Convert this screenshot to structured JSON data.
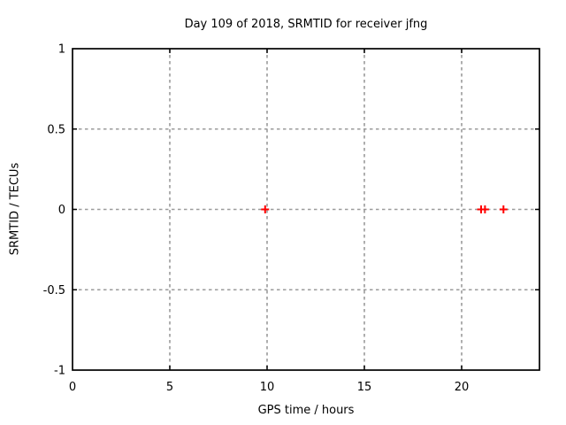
{
  "chart_data": {
    "type": "scatter",
    "title": "Day 109 of 2018, SRMTID for receiver jfng",
    "xlabel": "GPS time / hours",
    "ylabel": "SRMTID / TECUs",
    "xlim": [
      0,
      24
    ],
    "ylim": [
      -1,
      1
    ],
    "xticks": [
      {
        "value": 0,
        "label": "0"
      },
      {
        "value": 5,
        "label": "5"
      },
      {
        "value": 10,
        "label": "10"
      },
      {
        "value": 15,
        "label": "15"
      },
      {
        "value": 20,
        "label": "20"
      }
    ],
    "yticks": [
      {
        "value": -1,
        "label": "-1"
      },
      {
        "value": -0.5,
        "label": "-0.5"
      },
      {
        "value": 0,
        "label": "0"
      },
      {
        "value": 0.5,
        "label": "0.5"
      },
      {
        "value": 1,
        "label": "1"
      }
    ],
    "grid": true,
    "legend": "none",
    "marker": "plus",
    "series": [
      {
        "name": "SRMTID",
        "color": "#ff0000",
        "points": [
          [
            9.9,
            0.0
          ],
          [
            21.0,
            0.0
          ],
          [
            21.2,
            0.0
          ],
          [
            22.15,
            0.0
          ]
        ]
      }
    ],
    "colors": {
      "background": "#ffffff",
      "border": "#000000",
      "grid": "#9b9b9b",
      "text": "#000000"
    }
  }
}
